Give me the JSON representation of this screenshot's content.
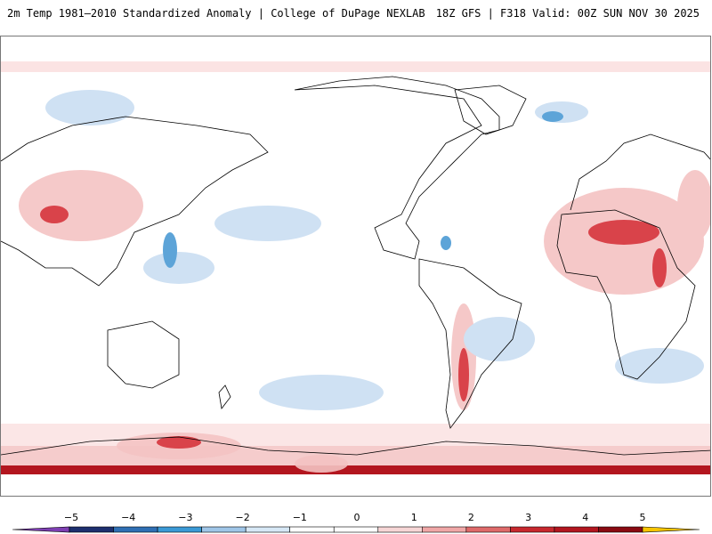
{
  "header": {
    "left_title": "2m Temp 1981–2010 Standardized Anomaly | College of DuPage NEXLAB",
    "right_title": "18Z GFS | F318 Valid: 00Z SUN NOV 30 2025"
  },
  "map": {
    "projection": "equirectangular",
    "center": "Pacific"
  },
  "colorbar": {
    "ticks": [
      "−5",
      "−4",
      "−3",
      "−2",
      "−1",
      "0",
      "1",
      "2",
      "3",
      "4",
      "5"
    ],
    "colors": [
      "#7e3fb3",
      "#1d2f6f",
      "#2f6fb4",
      "#3b9ad6",
      "#9fc6e8",
      "#d7e8f6",
      "#ffffff",
      "#ffffff",
      "#f7d6d6",
      "#f0a7a7",
      "#df6a6a",
      "#c8282e",
      "#b3161f",
      "#8a0a12",
      "#f7c500"
    ]
  }
}
